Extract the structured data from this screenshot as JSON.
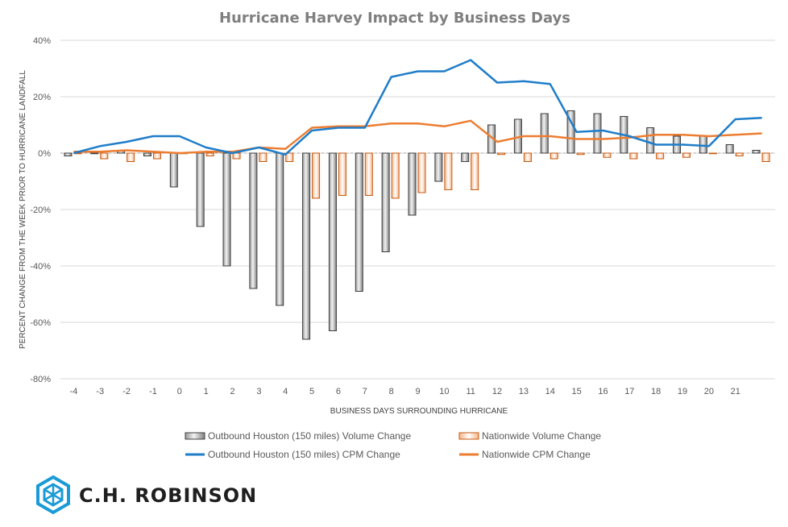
{
  "chart_data": {
    "type": "bar",
    "title": "Hurricane Harvey Impact by Business Days",
    "xlabel": "BUSINESS DAYS SURROUNDING HURRICANE",
    "ylabel": "PERCENT CHANGE FROM THE WEEK PRIOR TO HURRICANE LANDFALL",
    "ylim": [
      -80,
      40
    ],
    "yticks": [
      "40%",
      "20%",
      "0%",
      "-20%",
      "-40%",
      "-60%",
      "-80%"
    ],
    "ytick_values": [
      40,
      20,
      0,
      -20,
      -40,
      -60,
      -80
    ],
    "grid": "horizontal",
    "legend_position": "bottom",
    "categories": [
      "-4",
      "-3",
      "-2",
      "-1",
      "0",
      "1",
      "2",
      "3",
      "4",
      "5",
      "6",
      "7",
      "8",
      "9",
      "10",
      "11",
      "12",
      "13",
      "14",
      "15",
      "16",
      "17",
      "18",
      "19",
      "20",
      "21",
      ""
    ],
    "series": [
      {
        "name": "Outbound Houston (150 miles) Volume Change",
        "kind": "bar",
        "color": "#808080",
        "values": [
          -1,
          0,
          1,
          -1,
          -12,
          -26,
          -40,
          -48,
          -54,
          -66,
          -63,
          -49,
          -35,
          -22,
          -10,
          -3,
          10,
          12,
          14,
          15,
          14,
          13,
          9,
          6,
          6,
          3,
          1
        ]
      },
      {
        "name": "Nationwide Volume Change",
        "kind": "bar",
        "color": "#ed7d31",
        "values": [
          0,
          -2,
          -3,
          -2,
          0,
          -1,
          -2,
          -3,
          -3,
          -16,
          -15,
          -15,
          -16,
          -14,
          -13,
          -13,
          -0.5,
          -3,
          -2,
          -0.5,
          -1.5,
          -2,
          -2,
          -1.5,
          0,
          -1,
          -3
        ]
      },
      {
        "name": "Outbound Houston (150 miles) CPM Change",
        "kind": "line",
        "color": "#1f7dc9",
        "values": [
          0,
          2.5,
          4,
          6,
          6,
          2,
          0,
          2,
          -0.5,
          8,
          9,
          9,
          27,
          29,
          29,
          33,
          25,
          25.5,
          24.5,
          7.5,
          8,
          6,
          3,
          3,
          2.5,
          12,
          12.5
        ]
      },
      {
        "name": "Nationwide CPM Change",
        "kind": "line",
        "color": "#ed7d31",
        "values": [
          0.5,
          0.5,
          1,
          0.5,
          0,
          0.5,
          0.5,
          2,
          1.5,
          9,
          9.5,
          9.5,
          10.5,
          10.5,
          9.5,
          11.5,
          4,
          6,
          6,
          5,
          5,
          5.5,
          6.5,
          6.5,
          6,
          6.5,
          7
        ]
      }
    ]
  },
  "logo": {
    "text": "C.H. ROBINSON",
    "color": "#1a9ad6"
  }
}
